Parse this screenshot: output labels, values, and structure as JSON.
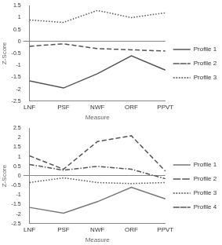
{
  "chart_data": [
    {
      "type": "line",
      "categories": [
        "LNF",
        "PSF",
        "NWF",
        "ORF",
        "PPVT"
      ],
      "x_label": "Measure",
      "y_label": "Z-Score",
      "ylim": [
        -2.5,
        1.5
      ],
      "yticks": [
        -2.5,
        -2,
        -1.5,
        -1,
        -0.5,
        0,
        0.5,
        1,
        1.5
      ],
      "grid": false,
      "legend": "right",
      "series": [
        {
          "name": "Profile 1",
          "color": "#555555",
          "line_style": "solid",
          "values": [
            -1.65,
            -1.95,
            -1.35,
            -0.6,
            -1.2
          ]
        },
        {
          "name": "Profile 2",
          "color": "#555555",
          "line_style": "dashed",
          "values": [
            -0.2,
            -0.1,
            -0.3,
            -0.35,
            -0.4
          ]
        },
        {
          "name": "Profile 3",
          "color": "#555555",
          "line_style": "dotted",
          "values": [
            0.9,
            0.8,
            1.3,
            1.0,
            1.2
          ]
        }
      ]
    },
    {
      "type": "line",
      "categories": [
        "LNF",
        "PSF",
        "NWF",
        "ORF",
        "PPVT"
      ],
      "x_label": "Measure",
      "y_label": "Z-Score",
      "ylim": [
        -2.5,
        2.5
      ],
      "yticks": [
        -2.5,
        -2,
        -1.5,
        -1,
        -0.5,
        0,
        0.5,
        1,
        1.5,
        2,
        2.5
      ],
      "grid": false,
      "legend": "right",
      "series": [
        {
          "name": "Profile 1",
          "color": "#777777",
          "line_style": "solid",
          "values": [
            -1.65,
            -1.95,
            -1.35,
            -0.6,
            -1.2
          ]
        },
        {
          "name": "Profile 2",
          "color": "#555555",
          "line_style": "dashdot",
          "values": [
            0.6,
            0.3,
            0.5,
            0.35,
            -0.15
          ]
        },
        {
          "name": "Profile 3",
          "color": "#555555",
          "line_style": "dotted",
          "values": [
            -0.35,
            -0.1,
            -0.35,
            -0.4,
            -0.35
          ]
        },
        {
          "name": "Profile 4",
          "color": "#555555",
          "line_style": "dashed",
          "values": [
            1.05,
            0.35,
            1.8,
            2.1,
            0.25
          ]
        }
      ]
    }
  ]
}
